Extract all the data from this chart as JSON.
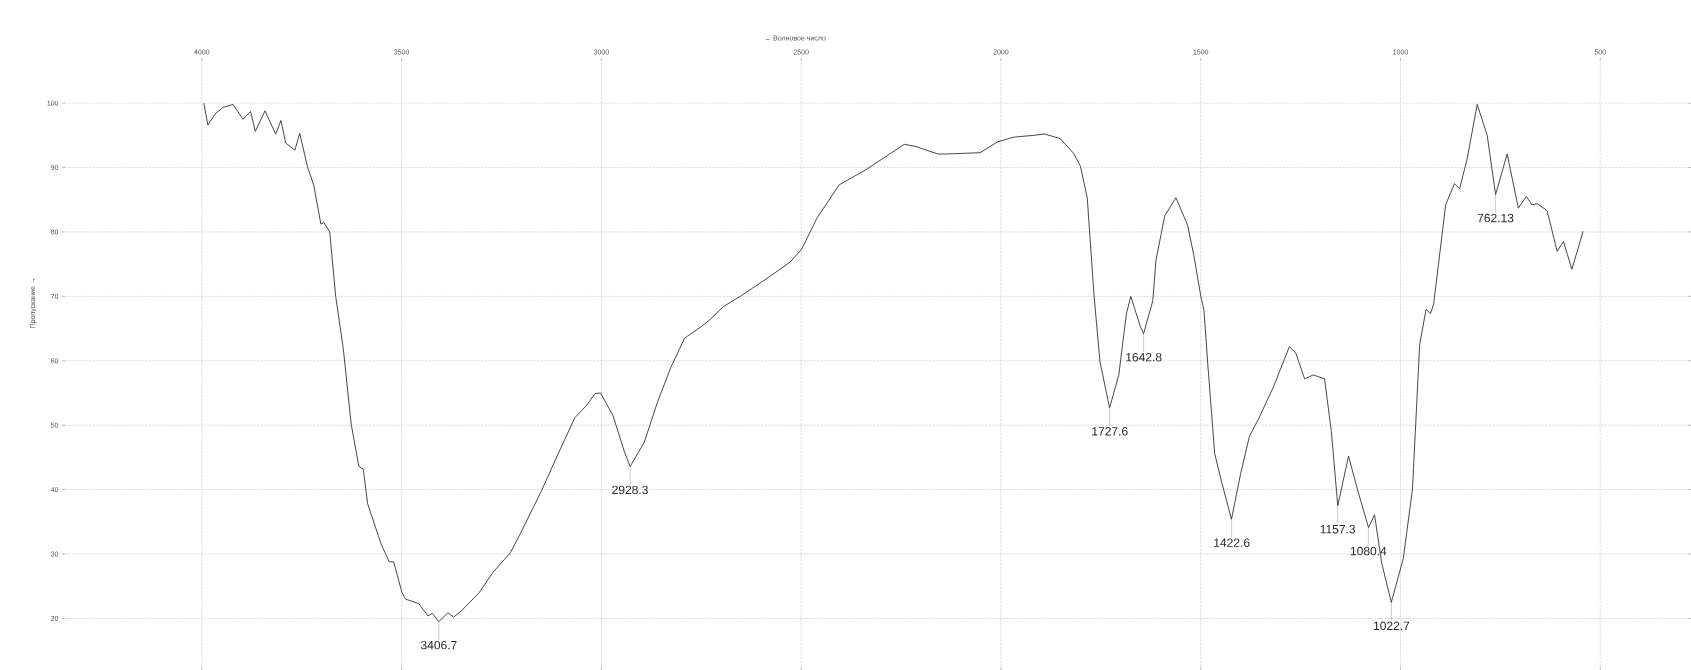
{
  "chart_data": {
    "type": "line",
    "xlabel": "← Волновое число",
    "ylabel": "Пропускание →",
    "x": [
      3995,
      3985,
      3967,
      3948,
      3922,
      3897,
      3878,
      3866,
      3842,
      3828,
      3815,
      3802,
      3790,
      3767,
      3755,
      3735,
      3720,
      3702,
      3695,
      3680,
      3665,
      3646,
      3626,
      3607,
      3596,
      3585,
      3551,
      3531,
      3520,
      3499,
      3490,
      3457,
      3434,
      3423,
      3407,
      3384,
      3370,
      3350,
      3306,
      3272,
      3228,
      3205,
      3150,
      3105,
      3066,
      3038,
      3016,
      3002,
      2971,
      2943,
      2928,
      2893,
      2860,
      2826,
      2792,
      2750,
      2728,
      2695,
      2650,
      2583,
      2528,
      2499,
      2460,
      2405,
      2337,
      2242,
      2215,
      2158,
      2136,
      2052,
      2008,
      1969,
      1918,
      1891,
      1852,
      1818,
      1801,
      1784,
      1767,
      1752,
      1728,
      1705,
      1686,
      1675,
      1651,
      1643,
      1620,
      1612,
      1590,
      1562,
      1533,
      1517,
      1500,
      1492,
      1482,
      1465,
      1449,
      1423,
      1400,
      1378,
      1355,
      1317,
      1278,
      1262,
      1240,
      1218,
      1190,
      1173,
      1157,
      1130,
      1108,
      1080,
      1065,
      1047,
      1023,
      993,
      970,
      952,
      936,
      925,
      917,
      887,
      865,
      852,
      833,
      808,
      783,
      762,
      733,
      705,
      685,
      671,
      658,
      633,
      608,
      592,
      571,
      543
    ],
    "values": [
      100,
      96.6,
      98.3,
      99.3,
      99.8,
      97.5,
      98.7,
      95.6,
      98.8,
      96.9,
      95.2,
      97.3,
      93.8,
      92.7,
      95.3,
      90,
      87.3,
      81.2,
      81.5,
      80,
      70,
      61.9,
      50.1,
      43.6,
      43.2,
      37.8,
      31.5,
      28.8,
      28.8,
      24,
      23,
      22.3,
      20.4,
      20.8,
      19.5,
      20.9,
      20.2,
      21.2,
      24,
      27.1,
      30.2,
      32.9,
      39.8,
      46,
      51.2,
      53,
      54.9,
      55,
      51.5,
      46,
      43.6,
      47.3,
      53.5,
      59,
      63.5,
      65.3,
      66.4,
      68.4,
      70.1,
      72.9,
      75.3,
      77.3,
      82.2,
      87.3,
      89.7,
      93.6,
      93.3,
      92.1,
      92.1,
      92.3,
      94,
      94.7,
      95,
      95.2,
      94.5,
      92.2,
      90.2,
      85.3,
      70.1,
      59.8,
      52.7,
      57.8,
      67.3,
      70,
      65.3,
      64.2,
      69.3,
      75.6,
      82.5,
      85.3,
      81.1,
      76.3,
      70.1,
      67.9,
      59.2,
      45.6,
      41.5,
      35.4,
      42.5,
      48.3,
      51,
      56.1,
      62.2,
      61.2,
      57.2,
      57.8,
      57.2,
      49,
      37.5,
      45.2,
      40.1,
      34.1,
      36.1,
      28.6,
      22.5,
      29.3,
      40.1,
      62.5,
      68,
      67.3,
      68.8,
      84.2,
      87.5,
      86.7,
      91.4,
      99.8,
      95,
      85.8,
      92.1,
      83.7,
      85.5,
      84.2,
      84.4,
      83.3,
      77,
      78.5,
      74.2,
      80.1
    ],
    "color": "#333333",
    "marker": "none",
    "line_style": "solid",
    "grid": true,
    "xlim": [
      4350,
      273
    ],
    "ylim": [
      12,
      107
    ],
    "xticks": [
      4000,
      3500,
      3000,
      2500,
      2000,
      1500,
      1000,
      500
    ],
    "yticks": [
      20,
      30,
      40,
      50,
      60,
      70,
      80,
      90,
      100
    ],
    "annotations": [
      {
        "text": "3406.7",
        "x": 3406.7,
        "y": 19.5
      },
      {
        "text": "2928.3",
        "x": 2928.3,
        "y": 43.6
      },
      {
        "text": "1727.6",
        "x": 1727.6,
        "y": 52.7
      },
      {
        "text": "1642.8",
        "x": 1642.8,
        "y": 64.2
      },
      {
        "text": "1422.6",
        "x": 1422.6,
        "y": 35.4
      },
      {
        "text": "1157.3",
        "x": 1157.3,
        "y": 37.5
      },
      {
        "text": "1080.4",
        "x": 1080.4,
        "y": 34.1
      },
      {
        "text": "1022.7",
        "x": 1022.7,
        "y": 22.5
      },
      {
        "text": "762.13",
        "x": 762.13,
        "y": 85.8
      }
    ]
  }
}
